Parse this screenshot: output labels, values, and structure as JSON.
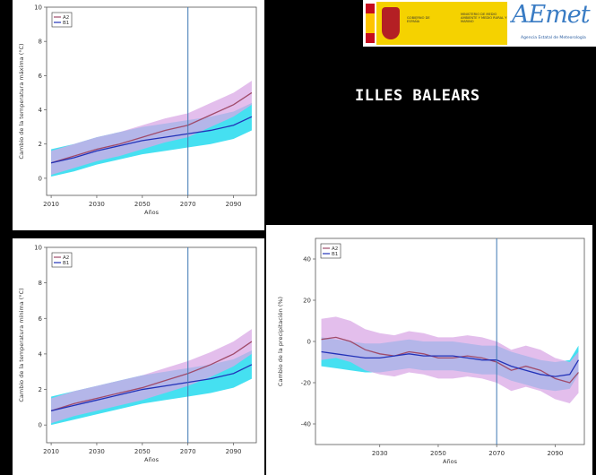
{
  "header": {
    "region_title": "ILLES BALEARS",
    "gov_text_left": "GOBIERNO DE ESPAÑA",
    "gov_text_right": "MINISTERIO DE MEDIO AMBIENTE Y MEDIO RURAL Y MARINO",
    "agency_logo": "AEmet",
    "agency_sub": "Agencia Estatal de Meteorología"
  },
  "colors": {
    "A2_line": "#a04b6a",
    "B1_line": "#2232b8",
    "A2_band": "#d9a8e6",
    "B1_band": "#16d8ee",
    "divider": "#3c78b4"
  },
  "chart_data": [
    {
      "type": "line",
      "ylabel": "Cambio de la temperatura máxima (°C)",
      "xlabel": "Años",
      "xlim": [
        2008,
        2100
      ],
      "ylim": [
        -1,
        10
      ],
      "xticks": [
        2010,
        2030,
        2050,
        2070,
        2090
      ],
      "yticks": [
        0,
        2,
        4,
        6,
        8,
        10
      ],
      "divider_x": 2070,
      "legend": [
        "A2",
        "B1"
      ],
      "x": [
        2010,
        2020,
        2030,
        2040,
        2050,
        2060,
        2070,
        2080,
        2090,
        2098
      ],
      "series": [
        {
          "name": "A2",
          "values": [
            0.9,
            1.3,
            1.7,
            2.0,
            2.4,
            2.8,
            3.1,
            3.7,
            4.3,
            5.0
          ],
          "band": 0.7
        },
        {
          "name": "B1",
          "values": [
            0.9,
            1.2,
            1.6,
            1.9,
            2.2,
            2.4,
            2.6,
            2.8,
            3.1,
            3.6
          ],
          "band": 0.8
        }
      ]
    },
    {
      "type": "line",
      "ylabel": "Cambio de la temperatura mínima (°C)",
      "xlabel": "Años",
      "xlim": [
        2008,
        2100
      ],
      "ylim": [
        -1,
        10
      ],
      "xticks": [
        2010,
        2030,
        2050,
        2070,
        2090
      ],
      "yticks": [
        0,
        2,
        4,
        6,
        8,
        10
      ],
      "divider_x": 2070,
      "legend": [
        "A2",
        "B1"
      ],
      "x": [
        2010,
        2020,
        2030,
        2040,
        2050,
        2060,
        2070,
        2080,
        2090,
        2098
      ],
      "series": [
        {
          "name": "A2",
          "values": [
            0.8,
            1.2,
            1.5,
            1.8,
            2.1,
            2.5,
            2.9,
            3.4,
            4.0,
            4.7
          ],
          "band": 0.7
        },
        {
          "name": "B1",
          "values": [
            0.8,
            1.1,
            1.4,
            1.7,
            2.0,
            2.2,
            2.4,
            2.6,
            2.9,
            3.4
          ],
          "band": 0.8
        }
      ]
    },
    {
      "type": "line",
      "ylabel": "Cambio de la precipitación (%)",
      "xlabel": "Años",
      "xlim": [
        2008,
        2100
      ],
      "ylim": [
        -50,
        50
      ],
      "xticks": [
        2030,
        2050,
        2070,
        2090
      ],
      "yticks": [
        -40,
        -20,
        0,
        20,
        40
      ],
      "divider_x": 2070,
      "legend": [
        "A2",
        "B1"
      ],
      "x": [
        2010,
        2015,
        2020,
        2025,
        2030,
        2035,
        2040,
        2045,
        2050,
        2055,
        2060,
        2065,
        2070,
        2075,
        2080,
        2085,
        2090,
        2095,
        2098
      ],
      "series": [
        {
          "name": "A2",
          "values": [
            1,
            2,
            0,
            -4,
            -6,
            -7,
            -5,
            -6,
            -8,
            -8,
            -7,
            -8,
            -10,
            -14,
            -12,
            -14,
            -18,
            -20,
            -15
          ],
          "band": 10
        },
        {
          "name": "B1",
          "values": [
            -5,
            -6,
            -7,
            -8,
            -8,
            -7,
            -6,
            -7,
            -7,
            -7,
            -8,
            -9,
            -9,
            -12,
            -14,
            -16,
            -17,
            -16,
            -9
          ],
          "band": 7
        }
      ]
    }
  ]
}
